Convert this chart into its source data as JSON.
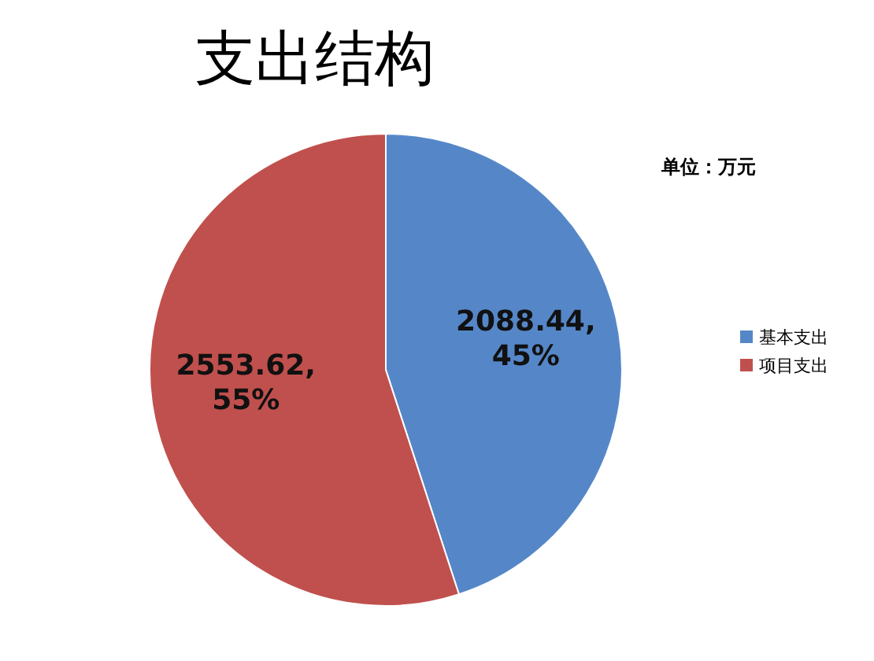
{
  "chart_data": {
    "type": "pie",
    "title": "支出结构",
    "annotations": [
      "单位：万元"
    ],
    "categories": [
      "基本支出",
      "项目支出"
    ],
    "values": [
      2088.44,
      2553.62
    ],
    "colors": [
      "#5587c8",
      "#c0504d"
    ],
    "value_labels": [
      "2088.44, 45%",
      "2553.62, 55%"
    ],
    "legend": "right"
  }
}
